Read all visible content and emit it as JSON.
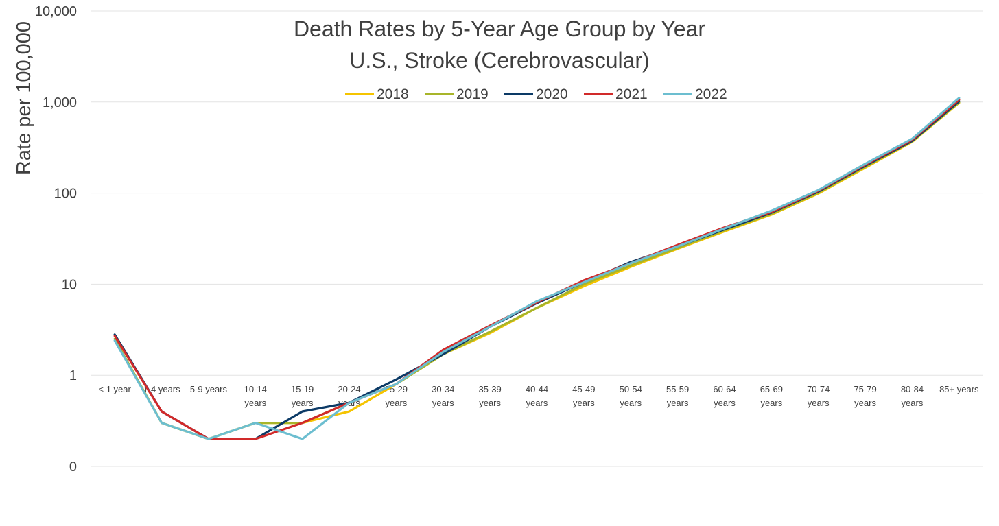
{
  "chart_data": {
    "type": "line",
    "title": [
      "Death Rates by 5-Year Age Group by Year",
      "U.S., Stroke (Cerebrovascular)"
    ],
    "ylabel": "Rate per 100,000",
    "xlabel": "",
    "y_scale": "log",
    "ylim": [
      0.1,
      10000
    ],
    "y_tick_values": [
      0.1,
      1,
      10,
      100,
      1000,
      10000
    ],
    "y_tick_labels": [
      "0",
      "1",
      "10",
      "100",
      "1,000",
      "10,000"
    ],
    "grid": "horizontal",
    "legend_position": "top-center",
    "categories": [
      "< 1 year",
      "1-4 years",
      "5-9 years",
      "10-14 years",
      "15-19 years",
      "20-24 years",
      "25-29 years",
      "30-34 years",
      "35-39 years",
      "40-44 years",
      "45-49 years",
      "50-54 years",
      "55-59 years",
      "60-64 years",
      "65-69 years",
      "70-74 years",
      "75-79 years",
      "80-84 years",
      "85+ years"
    ],
    "category_label_lines": [
      [
        "< 1 year"
      ],
      [
        "1-4 years"
      ],
      [
        "5-9 years"
      ],
      [
        "10-14",
        "years"
      ],
      [
        "15-19",
        "years"
      ],
      [
        "20-24",
        "years"
      ],
      [
        "25-29",
        "years"
      ],
      [
        "30-34",
        "years"
      ],
      [
        "35-39",
        "years"
      ],
      [
        "40-44",
        "years"
      ],
      [
        "45-49",
        "years"
      ],
      [
        "50-54",
        "years"
      ],
      [
        "55-59",
        "years"
      ],
      [
        "60-64",
        "years"
      ],
      [
        "65-69",
        "years"
      ],
      [
        "70-74",
        "years"
      ],
      [
        "75-79",
        "years"
      ],
      [
        "80-84",
        "years"
      ],
      [
        "85+ years"
      ]
    ],
    "series": [
      {
        "name": "2018",
        "color": "#f5c400",
        "values": [
          2.5,
          0.3,
          0.2,
          0.3,
          0.3,
          0.4,
          0.8,
          1.7,
          2.9,
          5.5,
          9.5,
          15.5,
          24.5,
          38,
          58,
          99,
          190,
          365,
          980
        ]
      },
      {
        "name": "2019",
        "color": "#a8b52a",
        "values": [
          2.5,
          0.3,
          0.2,
          0.3,
          0.3,
          0.5,
          0.8,
          1.7,
          3.0,
          5.5,
          10,
          16,
          25,
          39,
          59,
          101,
          195,
          370,
          990
        ]
      },
      {
        "name": "2020",
        "color": "#0c3a66",
        "values": [
          2.8,
          0.4,
          0.2,
          0.2,
          0.4,
          0.5,
          0.9,
          1.7,
          3.4,
          6.2,
          10.5,
          17.5,
          26,
          40,
          61,
          104,
          200,
          375,
          1020
        ]
      },
      {
        "name": "2021",
        "color": "#d12a2a",
        "values": [
          2.7,
          0.4,
          0.2,
          0.2,
          0.3,
          0.5,
          0.8,
          1.9,
          3.5,
          6.3,
          11,
          17,
          27,
          42,
          62,
          106,
          205,
          385,
          1060
        ]
      },
      {
        "name": "2022",
        "color": "#6cbed0",
        "values": [
          2.4,
          0.3,
          0.2,
          0.3,
          0.2,
          0.5,
          0.8,
          1.8,
          3.4,
          6.5,
          10.5,
          17,
          26,
          41,
          64,
          108,
          210,
          395,
          1110
        ]
      }
    ]
  }
}
